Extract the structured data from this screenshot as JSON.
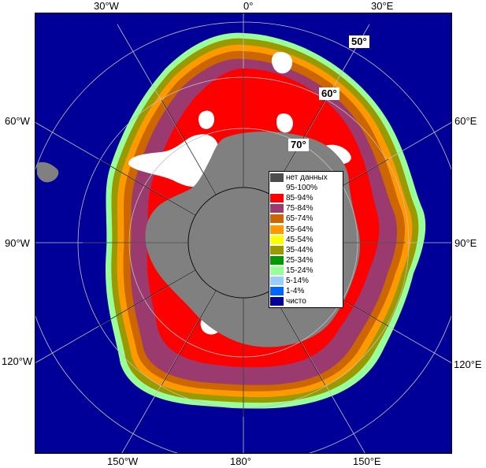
{
  "map": {
    "top_labels": [
      "30°W",
      "0°",
      "30°E"
    ],
    "left_labels": [
      "60°W",
      "90°W",
      "120°W"
    ],
    "right_labels": [
      "60°E",
      "90°E",
      "120°E"
    ],
    "bottom_labels": [
      "150°W",
      "180°",
      "150°E"
    ],
    "lat_labels": [
      "50°",
      "60°",
      "70°"
    ]
  },
  "legend": {
    "items": [
      {
        "label": "нет данных",
        "color": "#4d4d4d"
      },
      {
        "label": "95-100%",
        "color": "#ffffff"
      },
      {
        "label": "85-94%",
        "color": "#ff0000"
      },
      {
        "label": "75-84%",
        "color": "#9b3a6e"
      },
      {
        "label": "65-74%",
        "color": "#cc6600"
      },
      {
        "label": "55-64%",
        "color": "#ff9900"
      },
      {
        "label": "45-54%",
        "color": "#ffff00"
      },
      {
        "label": "35-44%",
        "color": "#999900"
      },
      {
        "label": "25-34%",
        "color": "#009900"
      },
      {
        "label": "15-24%",
        "color": "#99ff99"
      },
      {
        "label": "5-14%",
        "color": "#99ccff"
      },
      {
        "label": "1-4%",
        "color": "#0066ff"
      },
      {
        "label": "чисто",
        "color": "#000099"
      }
    ]
  },
  "colors": {
    "ocean": "#000099",
    "land": "#808080",
    "ice_shelf": "#a0a0a0",
    "grid": "#c0c0c0",
    "grid_dark": "#000000"
  }
}
